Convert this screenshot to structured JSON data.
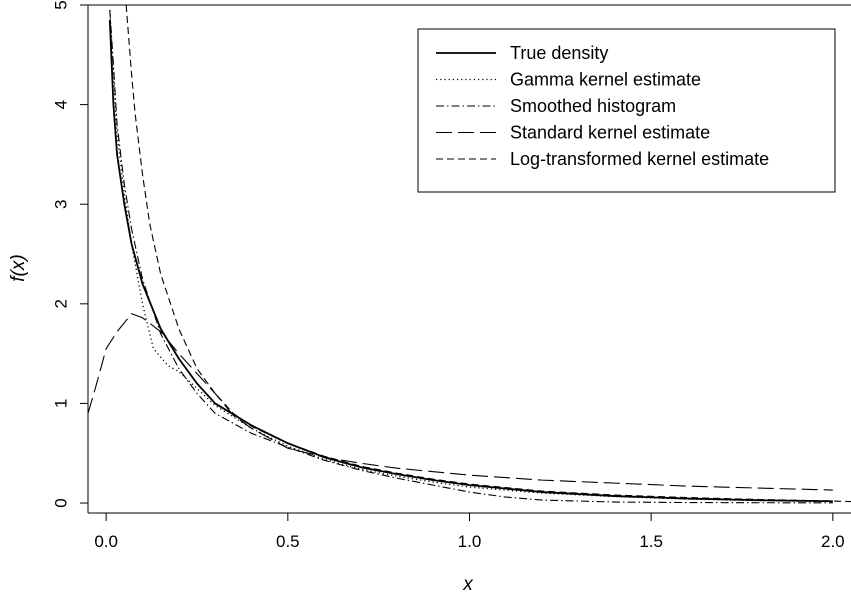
{
  "chart_data": {
    "type": "line",
    "title": "",
    "xlabel": "x",
    "ylabel": "f(x)",
    "xlim": [
      -0.05,
      2.05
    ],
    "ylim": [
      -0.1,
      5.0
    ],
    "xticks": [
      0.0,
      0.5,
      1.0,
      1.5,
      2.0
    ],
    "xtick_labels": [
      "0.0",
      "0.5",
      "1.0",
      "1.5",
      "2.0"
    ],
    "yticks": [
      0,
      1,
      2,
      3,
      4,
      5
    ],
    "ytick_labels": [
      "0",
      "1",
      "2",
      "3",
      "4",
      "5"
    ],
    "grid": false,
    "legend_position": "top-right",
    "series": [
      {
        "name": "True density",
        "dash": "solid",
        "points": [
          [
            0.01,
            4.85
          ],
          [
            0.02,
            4.0
          ],
          [
            0.03,
            3.5
          ],
          [
            0.05,
            3.0
          ],
          [
            0.07,
            2.6
          ],
          [
            0.1,
            2.2
          ],
          [
            0.15,
            1.75
          ],
          [
            0.2,
            1.45
          ],
          [
            0.25,
            1.2
          ],
          [
            0.3,
            1.0
          ],
          [
            0.4,
            0.78
          ],
          [
            0.5,
            0.6
          ],
          [
            0.6,
            0.46
          ],
          [
            0.7,
            0.36
          ],
          [
            0.8,
            0.29
          ],
          [
            0.9,
            0.23
          ],
          [
            1.0,
            0.18
          ],
          [
            1.2,
            0.11
          ],
          [
            1.4,
            0.07
          ],
          [
            1.6,
            0.045
          ],
          [
            1.8,
            0.028
          ],
          [
            2.0,
            0.018
          ]
        ]
      },
      {
        "name": "Gamma kernel estimate",
        "dash": "dotted",
        "points": [
          [
            0.01,
            4.95
          ],
          [
            0.02,
            4.3
          ],
          [
            0.03,
            3.7
          ],
          [
            0.05,
            3.1
          ],
          [
            0.07,
            2.6
          ],
          [
            0.1,
            2.0
          ],
          [
            0.13,
            1.55
          ],
          [
            0.17,
            1.38
          ],
          [
            0.2,
            1.32
          ],
          [
            0.25,
            1.15
          ],
          [
            0.3,
            0.98
          ],
          [
            0.4,
            0.75
          ],
          [
            0.5,
            0.57
          ],
          [
            0.6,
            0.44
          ],
          [
            0.7,
            0.34
          ],
          [
            0.8,
            0.27
          ],
          [
            0.9,
            0.21
          ],
          [
            1.0,
            0.16
          ],
          [
            1.2,
            0.1
          ],
          [
            1.4,
            0.065
          ],
          [
            1.6,
            0.04
          ],
          [
            1.8,
            0.025
          ],
          [
            2.0,
            0.015
          ]
        ]
      },
      {
        "name": "Smoothed histogram",
        "dash": "dashdot",
        "points": [
          [
            0.01,
            4.95
          ],
          [
            0.02,
            4.4
          ],
          [
            0.03,
            3.8
          ],
          [
            0.05,
            3.2
          ],
          [
            0.07,
            2.75
          ],
          [
            0.1,
            2.25
          ],
          [
            0.15,
            1.7
          ],
          [
            0.2,
            1.35
          ],
          [
            0.25,
            1.1
          ],
          [
            0.3,
            0.9
          ],
          [
            0.4,
            0.7
          ],
          [
            0.5,
            0.56
          ],
          [
            0.6,
            0.43
          ],
          [
            0.7,
            0.33
          ],
          [
            0.8,
            0.25
          ],
          [
            0.9,
            0.18
          ],
          [
            1.0,
            0.11
          ],
          [
            1.1,
            0.06
          ],
          [
            1.2,
            0.03
          ],
          [
            1.4,
            0.01
          ],
          [
            1.6,
            0.005
          ],
          [
            1.8,
            0.003
          ],
          [
            2.0,
            0.002
          ]
        ]
      },
      {
        "name": "Standard kernel estimate",
        "dash": "longdash",
        "points": [
          [
            -0.05,
            0.9
          ],
          [
            -0.03,
            1.15
          ],
          [
            0.0,
            1.55
          ],
          [
            0.03,
            1.72
          ],
          [
            0.07,
            1.9
          ],
          [
            0.1,
            1.86
          ],
          [
            0.15,
            1.72
          ],
          [
            0.2,
            1.5
          ],
          [
            0.3,
            1.1
          ],
          [
            0.35,
            0.88
          ],
          [
            0.4,
            0.75
          ],
          [
            0.5,
            0.55
          ],
          [
            0.6,
            0.46
          ],
          [
            0.7,
            0.4
          ],
          [
            0.8,
            0.35
          ],
          [
            1.0,
            0.28
          ],
          [
            1.2,
            0.23
          ],
          [
            1.4,
            0.2
          ],
          [
            1.6,
            0.17
          ],
          [
            1.8,
            0.15
          ],
          [
            2.0,
            0.13
          ]
        ]
      },
      {
        "name": "Log-transformed kernel estimate",
        "dash": "shortdash",
        "points": [
          [
            0.055,
            5.0
          ],
          [
            0.07,
            4.3
          ],
          [
            0.08,
            3.9
          ],
          [
            0.1,
            3.3
          ],
          [
            0.12,
            2.8
          ],
          [
            0.15,
            2.3
          ],
          [
            0.2,
            1.75
          ],
          [
            0.25,
            1.35
          ],
          [
            0.3,
            1.1
          ],
          [
            0.35,
            0.9
          ],
          [
            0.4,
            0.77
          ],
          [
            0.5,
            0.6
          ],
          [
            0.6,
            0.47
          ],
          [
            0.7,
            0.37
          ],
          [
            0.8,
            0.3
          ],
          [
            0.9,
            0.24
          ],
          [
            1.0,
            0.19
          ],
          [
            1.2,
            0.12
          ],
          [
            1.4,
            0.08
          ],
          [
            1.6,
            0.055
          ],
          [
            1.8,
            0.035
          ],
          [
            2.0,
            0.02
          ],
          [
            2.05,
            0.015
          ]
        ]
      }
    ]
  }
}
